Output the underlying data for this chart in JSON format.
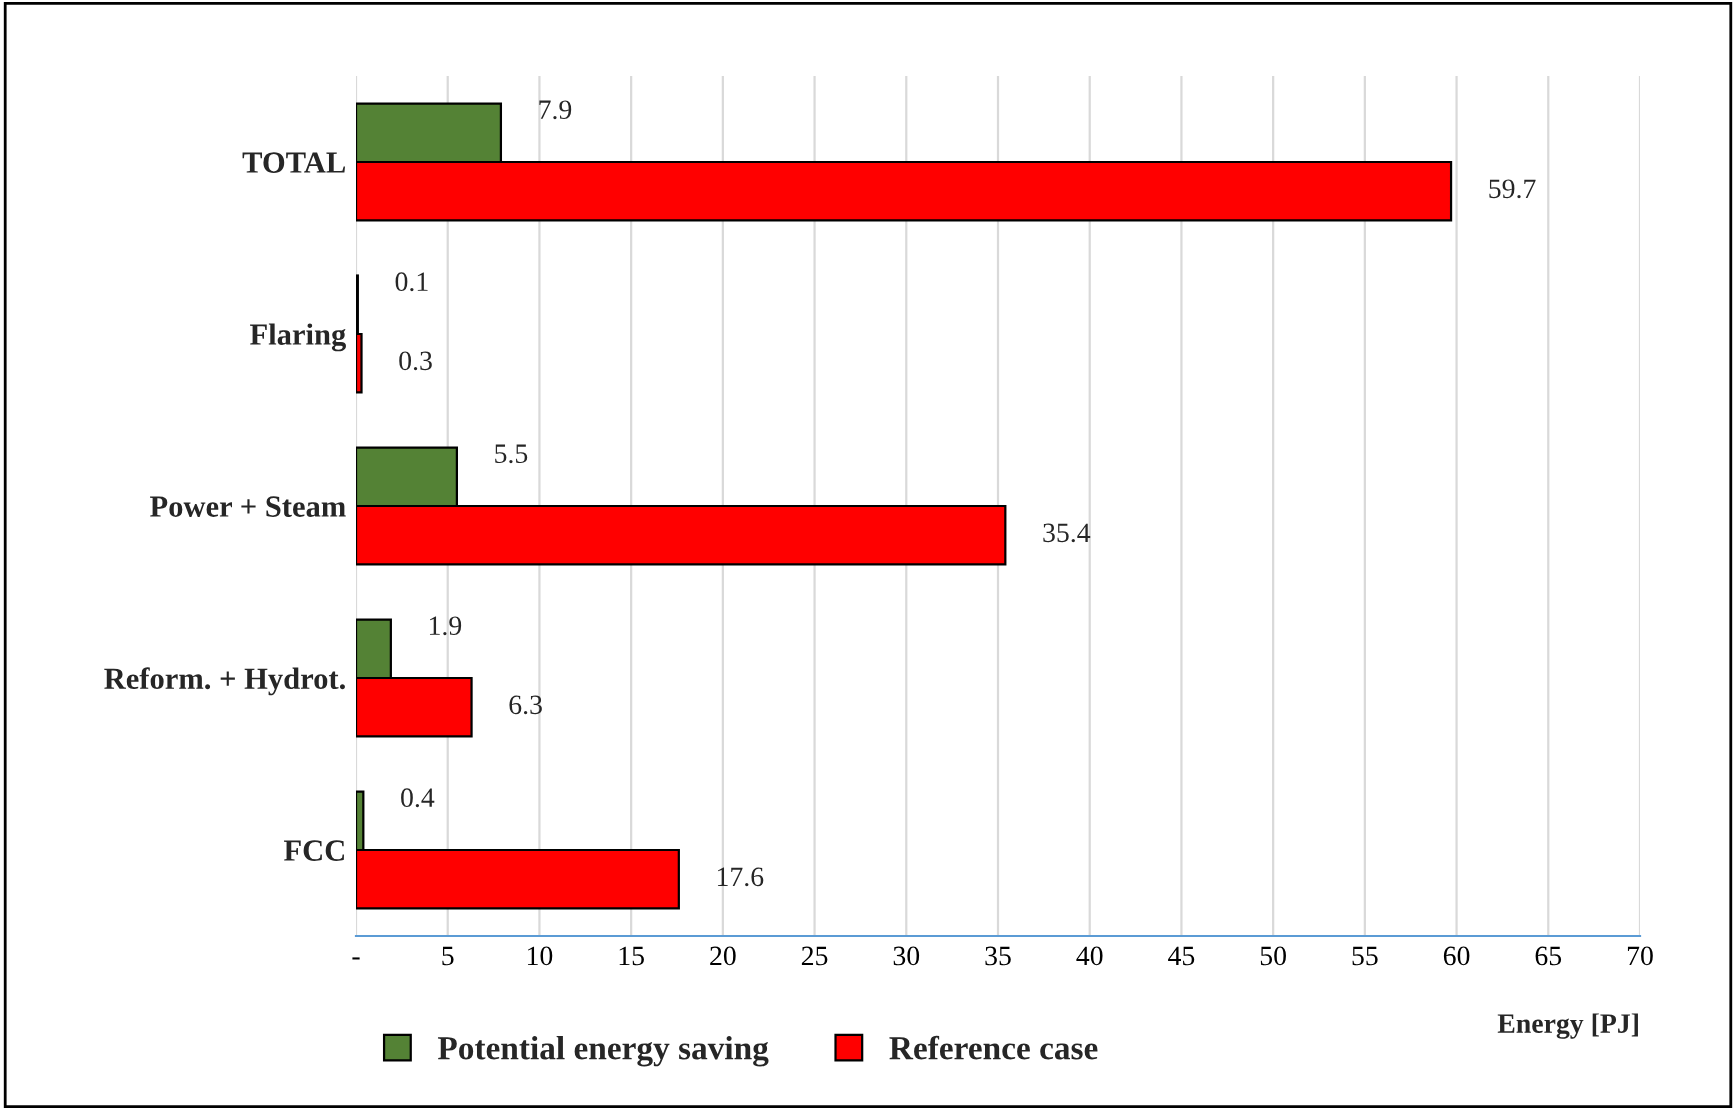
{
  "chart_data": {
    "type": "bar",
    "orientation": "horizontal",
    "xlabel": "Energy [PJ]",
    "categories": [
      "TOTAL",
      "Flaring",
      "Power + Steam",
      "Reform. + Hydrot.",
      "FCC"
    ],
    "series": [
      {
        "name": "Potential energy saving",
        "color": "#548235",
        "values": [
          7.9,
          0.1,
          5.5,
          1.9,
          0.4
        ]
      },
      {
        "name": "Reference case",
        "color": "#ff0000",
        "values": [
          59.7,
          0.3,
          35.4,
          6.3,
          17.6
        ]
      }
    ],
    "xlim": [
      0,
      70
    ],
    "xticks": [
      {
        "value": 0,
        "label": "-"
      },
      5,
      10,
      15,
      20,
      25,
      30,
      35,
      40,
      45,
      50,
      55,
      60,
      65,
      70
    ],
    "grid": "x",
    "legend": "bottom",
    "data_labels": true
  }
}
